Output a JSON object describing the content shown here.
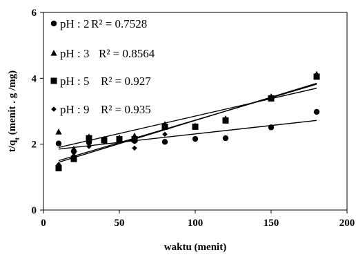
{
  "chart_data": {
    "type": "scatter",
    "title": "",
    "xlabel": "waktu (menit)",
    "ylabel_main": "t/q",
    "ylabel_sub": "t",
    "ylabel_rest": " (menit . g /mg)",
    "xlim": [
      0,
      200
    ],
    "ylim": [
      0,
      6
    ],
    "xticks": [
      0,
      50,
      100,
      150,
      200
    ],
    "yticks": [
      0,
      2,
      4,
      6
    ],
    "grid": false,
    "legend_position": "top-left",
    "series": [
      {
        "name": "pH : 2",
        "marker": "circle",
        "r2": "R² = 0.7528",
        "x": [
          10,
          20,
          30,
          40,
          50,
          60,
          80,
          100,
          120,
          150,
          180
        ],
        "y": [
          2.02,
          1.78,
          2.05,
          2.1,
          2.15,
          2.1,
          2.07,
          2.16,
          2.18,
          2.51,
          2.98
        ],
        "trend": [
          [
            10,
            1.85
          ],
          [
            180,
            2.72
          ]
        ]
      },
      {
        "name": "pH : 3",
        "marker": "triangle",
        "r2": "R² = 0.8564",
        "x": [
          10,
          20,
          30,
          40,
          50,
          60,
          80,
          100,
          120,
          150,
          180
        ],
        "y": [
          2.37,
          1.85,
          2.22,
          2.15,
          2.19,
          2.25,
          2.6,
          2.55,
          2.77,
          3.44,
          4.12
        ],
        "trend": [
          [
            10,
            1.9
          ],
          [
            180,
            3.7
          ]
        ]
      },
      {
        "name": "pH : 5",
        "marker": "square",
        "r2": "R² = 0.927",
        "x": [
          10,
          20,
          30,
          40,
          50,
          60,
          80,
          100,
          120,
          150,
          180
        ],
        "y": [
          1.27,
          1.55,
          2.18,
          2.12,
          2.15,
          2.15,
          2.53,
          2.53,
          2.72,
          3.39,
          4.05
        ],
        "trend": [
          [
            10,
            1.45
          ],
          [
            180,
            3.85
          ]
        ]
      },
      {
        "name": "pH : 9",
        "marker": "diamond",
        "r2": "R² = 0.935",
        "x": [
          10,
          20,
          30,
          40,
          50,
          60,
          80,
          100,
          120,
          150,
          180
        ],
        "y": [
          1.38,
          1.65,
          1.93,
          2.1,
          2.12,
          1.88,
          2.3,
          2.52,
          2.75,
          3.42,
          4.07
        ],
        "trend": [
          [
            10,
            1.5
          ],
          [
            180,
            3.82
          ]
        ]
      }
    ]
  }
}
